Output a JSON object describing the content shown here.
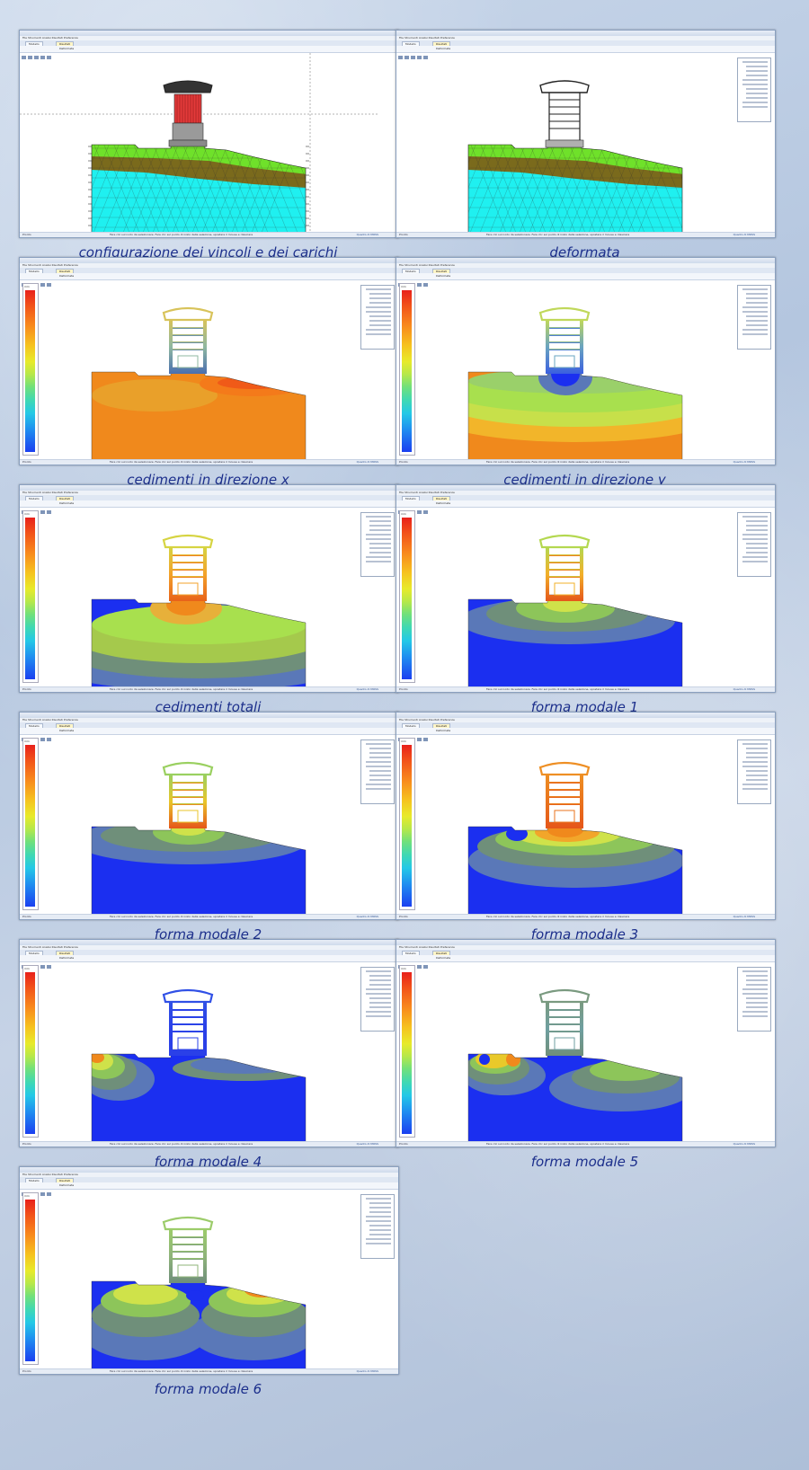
{
  "app": {
    "menu": "File  Strumenti  Analisi  Risultati  Preferenze",
    "tab_main": "Modello",
    "tab_active": "Risultati",
    "toolbar_label": "Deformata",
    "status_left": "Pronto",
    "status_hint": "Fare clic sul nodo da selezionare. Fare clic sul punto di inizio della selezione, spostare il mouse e rilasciare",
    "status_right": "Quadro di MOSS"
  },
  "legend_unit": "mm",
  "colors": {
    "caption": "#1c2f8c",
    "surface": "#6fe12a",
    "clay": "#7a6a1c",
    "bedrock": "#1ff0f0",
    "mesh": "#333333",
    "contour_blue": "#1b2ff0",
    "contour_orange": "#f0891c"
  },
  "panels": [
    {
      "id": "vincoli",
      "caption": "configurazione dei vincoli e dei carichi",
      "kind": "mesh_loads"
    },
    {
      "id": "deformata",
      "caption": "deformata",
      "kind": "mesh_deformed"
    },
    {
      "id": "cedx",
      "caption": "cedimenti in direzione x",
      "kind": "contour_x"
    },
    {
      "id": "cedy",
      "caption": "cedimenti in direzione y",
      "kind": "contour_y"
    },
    {
      "id": "cedtot",
      "caption": "cedimenti totali",
      "kind": "contour_tot"
    },
    {
      "id": "modo1",
      "caption": "forma modale 1",
      "kind": "mode1"
    },
    {
      "id": "modo2",
      "caption": "forma modale 2",
      "kind": "mode2"
    },
    {
      "id": "modo3",
      "caption": "forma modale 3",
      "kind": "mode3"
    },
    {
      "id": "modo4",
      "caption": "forma modale 4",
      "kind": "mode4"
    },
    {
      "id": "modo5",
      "caption": "forma modale 5",
      "kind": "mode5"
    },
    {
      "id": "modo6",
      "caption": "forma modale 6",
      "kind": "mode6"
    }
  ]
}
